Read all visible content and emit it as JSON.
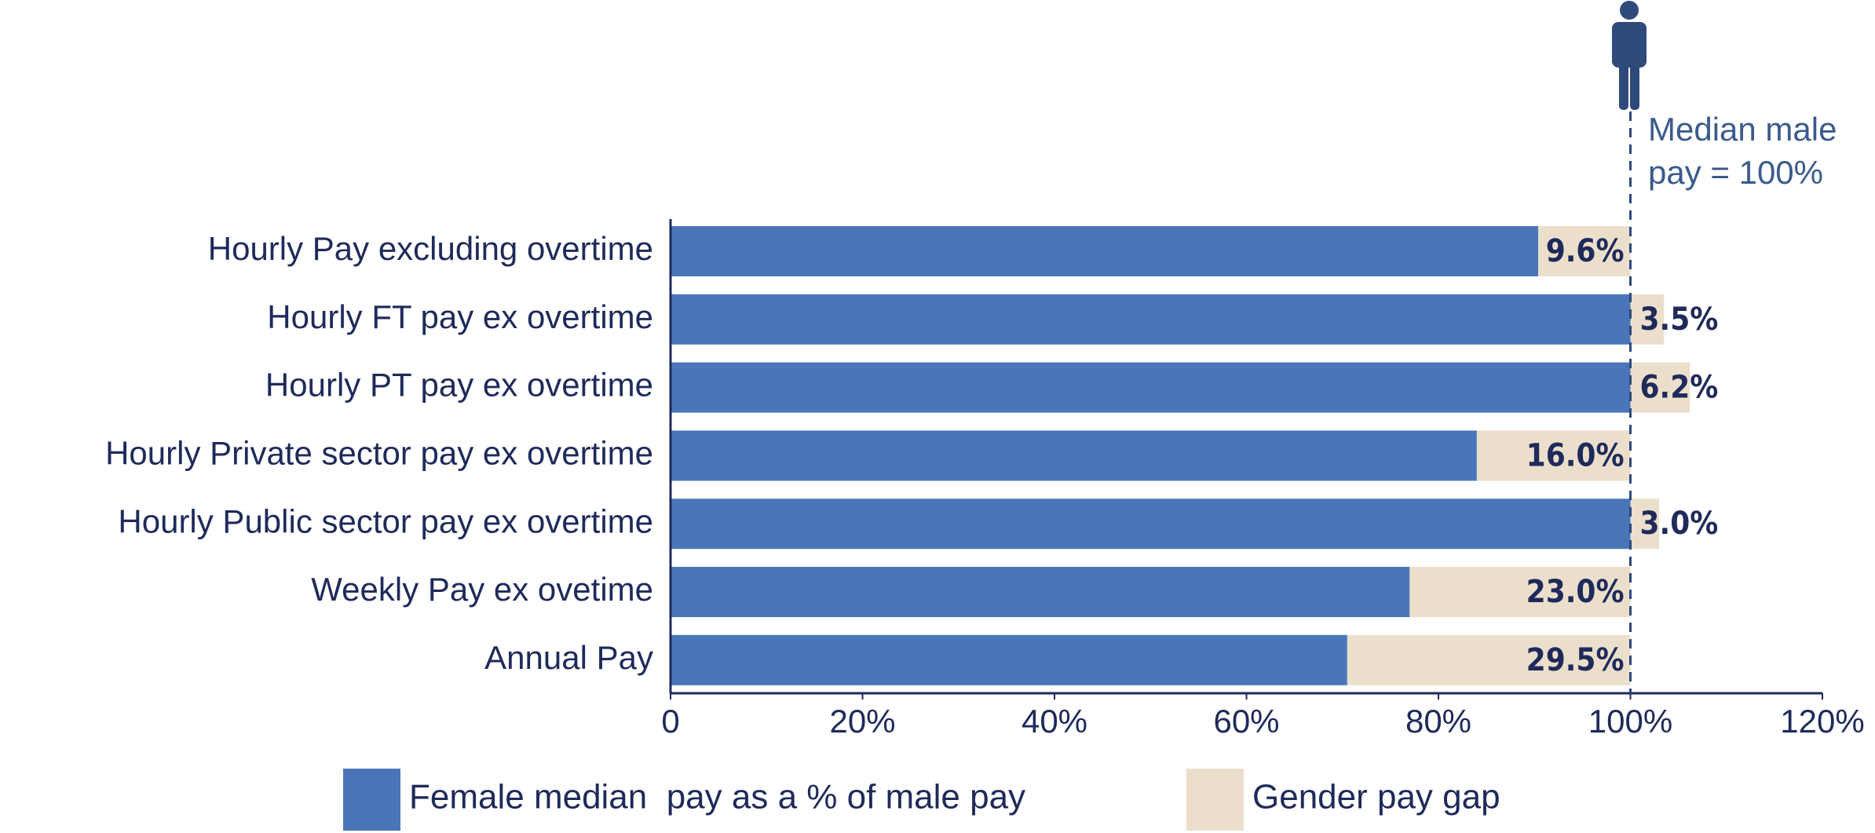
{
  "chart_data": {
    "type": "stacked-barh",
    "categories": [
      "Hourly Pay excluding overtime",
      "Hourly FT pay ex overtime",
      "Hourly PT pay ex overtime",
      "Hourly Private sector pay ex overtime",
      "Hourly Public sector pay ex overtime",
      "Weekly Pay ex ovetime",
      "Annual Pay"
    ],
    "series": [
      {
        "name": "Female median  pay as a % of male pay",
        "color": "#4a76b9",
        "values": [
          90.4,
          100,
          100,
          84.0,
          100,
          77.0,
          70.5
        ]
      },
      {
        "name": "Gender pay gap",
        "color": "#ebdfcc",
        "values": [
          9.6,
          3.5,
          6.2,
          16.0,
          3.0,
          23.0,
          29.5
        ],
        "value_labels": [
          "9.6%",
          "3.5%",
          "6.2%",
          "16.0%",
          "3.0%",
          "23.0%",
          "29.5%"
        ]
      }
    ],
    "xlim": [
      0,
      120
    ],
    "xticks": [
      0,
      {
        "value": 20,
        "label": "20%"
      },
      {
        "value": 40,
        "label": "40%"
      },
      {
        "value": 60,
        "label": "60%"
      },
      {
        "value": 80,
        "label": "80%"
      },
      {
        "value": 100,
        "label": "100%"
      },
      {
        "value": 120,
        "label": "120%"
      }
    ],
    "reference_x": 100,
    "annotation": [
      "Median male",
      "pay = 100%"
    ],
    "legend": "bottom"
  }
}
